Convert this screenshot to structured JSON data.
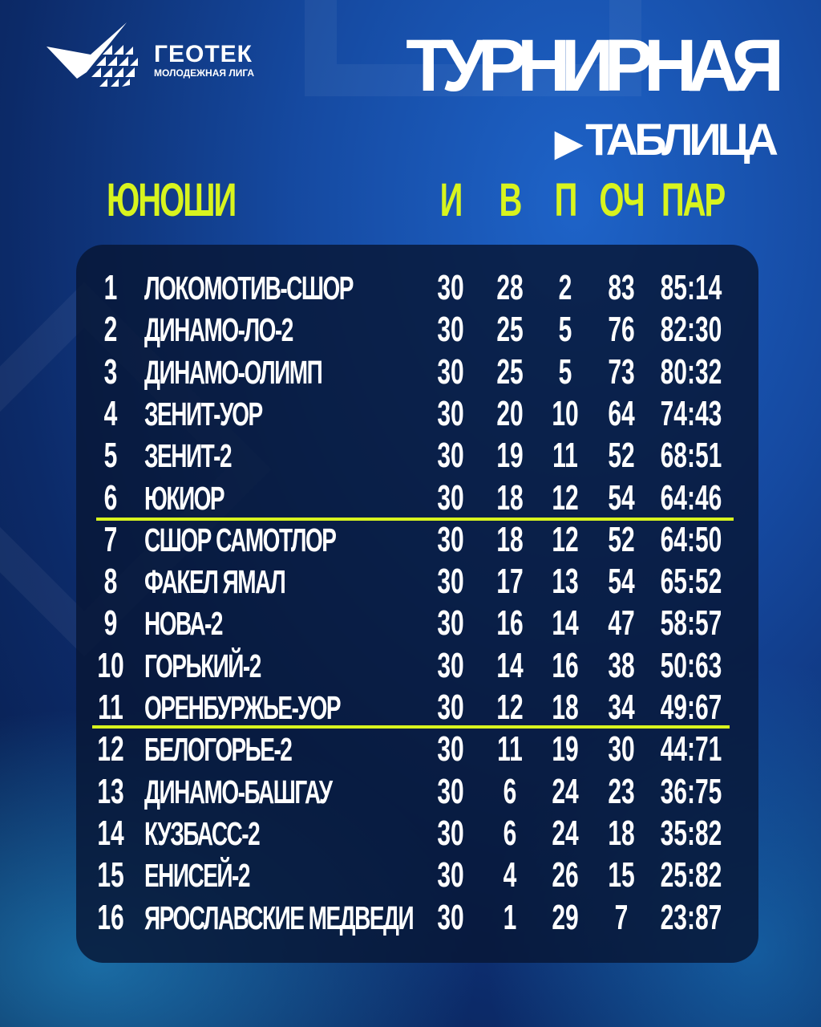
{
  "brand": {
    "name": "ГЕОТЕК",
    "subtitle": "МОЛОДЕЖНАЯ ЛИГА"
  },
  "title": {
    "line1": "ТУРНИРНАЯ",
    "line2": "ТАБЛИЦА",
    "arrow": "▶"
  },
  "colors": {
    "accent": "#d8f41e",
    "panel": "#07163a"
  },
  "table": {
    "group": "ЮНОШИ",
    "columns": [
      "И",
      "В",
      "П",
      "ОЧ",
      "ПАР"
    ],
    "rows": [
      {
        "pos": "1",
        "team": "ЛОКОМОТИВ-СШОР",
        "g": "30",
        "w": "28",
        "l": "2",
        "pts": "83",
        "goals": "85:14"
      },
      {
        "pos": "2",
        "team": "ДИНАМО-ЛО-2",
        "g": "30",
        "w": "25",
        "l": "5",
        "pts": "76",
        "goals": "82:30"
      },
      {
        "pos": "3",
        "team": "ДИНАМО-ОЛИМП",
        "g": "30",
        "w": "25",
        "l": "5",
        "pts": "73",
        "goals": "80:32"
      },
      {
        "pos": "4",
        "team": "ЗЕНИТ-УОР",
        "g": "30",
        "w": "20",
        "l": "10",
        "pts": "64",
        "goals": "74:43"
      },
      {
        "pos": "5",
        "team": "ЗЕНИТ-2",
        "g": "30",
        "w": "19",
        "l": "11",
        "pts": "52",
        "goals": "68:51"
      },
      {
        "pos": "6",
        "team": "ЮКИОР",
        "g": "30",
        "w": "18",
        "l": "12",
        "pts": "54",
        "goals": "64:46"
      },
      {
        "pos": "7",
        "team": "СШОР САМОТЛОР",
        "g": "30",
        "w": "18",
        "l": "12",
        "pts": "52",
        "goals": "64:50"
      },
      {
        "pos": "8",
        "team": "ФАКЕЛ ЯМАЛ",
        "g": "30",
        "w": "17",
        "l": "13",
        "pts": "54",
        "goals": "65:52"
      },
      {
        "pos": "9",
        "team": "НОВА-2",
        "g": "30",
        "w": "16",
        "l": "14",
        "pts": "47",
        "goals": "58:57"
      },
      {
        "pos": "10",
        "team": "ГОРЬКИЙ-2",
        "g": "30",
        "w": "14",
        "l": "16",
        "pts": "38",
        "goals": "50:63"
      },
      {
        "pos": "11",
        "team": "ОРЕНБУРЖЬЕ-УОР",
        "g": "30",
        "w": "12",
        "l": "18",
        "pts": "34",
        "goals": "49:67"
      },
      {
        "pos": "12",
        "team": "БЕЛОГОРЬЕ-2",
        "g": "30",
        "w": "11",
        "l": "19",
        "pts": "30",
        "goals": "44:71"
      },
      {
        "pos": "13",
        "team": "ДИНАМО-БАШГАУ",
        "g": "30",
        "w": "6",
        "l": "24",
        "pts": "23",
        "goals": "36:75"
      },
      {
        "pos": "14",
        "team": "КУЗБАСС-2",
        "g": "30",
        "w": "6",
        "l": "24",
        "pts": "18",
        "goals": "35:82"
      },
      {
        "pos": "15",
        "team": "ЕНИСЕЙ-2",
        "g": "30",
        "w": "4",
        "l": "26",
        "pts": "15",
        "goals": "25:82"
      },
      {
        "pos": "16",
        "team": "ЯРОСЛАВСКИЕ МЕДВЕДИ",
        "g": "30",
        "w": "1",
        "l": "29",
        "pts": "7",
        "goals": "23:87"
      }
    ]
  }
}
